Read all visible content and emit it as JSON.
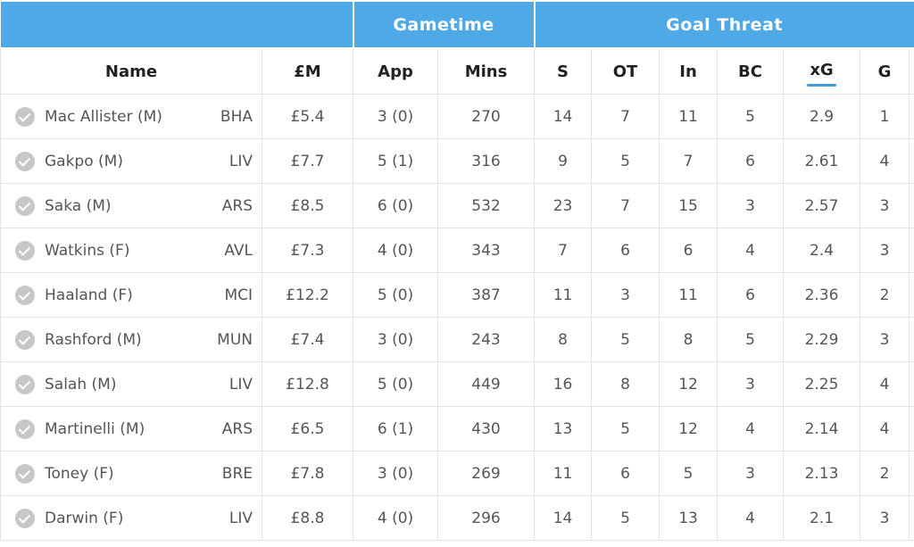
{
  "groups": {
    "gametime": "Gametime",
    "goal_threat": "Goal Threat"
  },
  "columns": {
    "name": "Name",
    "price": "£M",
    "app": "App",
    "mins": "Mins",
    "shots": "S",
    "on_target": "OT",
    "in_box": "In",
    "big_chances": "BC",
    "xg": "xG",
    "goals": "G"
  },
  "sorted_column": "xG",
  "colors": {
    "header_bg": "#4fa9e6",
    "sort_indicator": "#3a9de0",
    "check_icon": "#c7c7c7"
  },
  "rows": [
    {
      "name": "Mac Allister (M)",
      "team": "BHA",
      "price": "£5.4",
      "app": "3 (0)",
      "mins": "270",
      "s": "14",
      "ot": "7",
      "in": "11",
      "bc": "5",
      "xg": "2.9",
      "g": "1"
    },
    {
      "name": "Gakpo (M)",
      "team": "LIV",
      "price": "£7.7",
      "app": "5 (1)",
      "mins": "316",
      "s": "9",
      "ot": "5",
      "in": "7",
      "bc": "6",
      "xg": "2.61",
      "g": "4"
    },
    {
      "name": "Saka (M)",
      "team": "ARS",
      "price": "£8.5",
      "app": "6 (0)",
      "mins": "532",
      "s": "23",
      "ot": "7",
      "in": "15",
      "bc": "3",
      "xg": "2.57",
      "g": "3"
    },
    {
      "name": "Watkins (F)",
      "team": "AVL",
      "price": "£7.3",
      "app": "4 (0)",
      "mins": "343",
      "s": "7",
      "ot": "6",
      "in": "6",
      "bc": "4",
      "xg": "2.4",
      "g": "3"
    },
    {
      "name": "Haaland (F)",
      "team": "MCI",
      "price": "£12.2",
      "app": "5 (0)",
      "mins": "387",
      "s": "11",
      "ot": "3",
      "in": "11",
      "bc": "6",
      "xg": "2.36",
      "g": "2"
    },
    {
      "name": "Rashford (M)",
      "team": "MUN",
      "price": "£7.4",
      "app": "3 (0)",
      "mins": "243",
      "s": "8",
      "ot": "5",
      "in": "8",
      "bc": "5",
      "xg": "2.29",
      "g": "3"
    },
    {
      "name": "Salah (M)",
      "team": "LIV",
      "price": "£12.8",
      "app": "5 (0)",
      "mins": "449",
      "s": "16",
      "ot": "8",
      "in": "12",
      "bc": "3",
      "xg": "2.25",
      "g": "4"
    },
    {
      "name": "Martinelli (M)",
      "team": "ARS",
      "price": "£6.5",
      "app": "6 (1)",
      "mins": "430",
      "s": "13",
      "ot": "5",
      "in": "12",
      "bc": "4",
      "xg": "2.14",
      "g": "4"
    },
    {
      "name": "Toney (F)",
      "team": "BRE",
      "price": "£7.8",
      "app": "3 (0)",
      "mins": "269",
      "s": "11",
      "ot": "6",
      "in": "5",
      "bc": "3",
      "xg": "2.13",
      "g": "2"
    },
    {
      "name": "Darwin (F)",
      "team": "LIV",
      "price": "£8.8",
      "app": "4 (0)",
      "mins": "296",
      "s": "14",
      "ot": "5",
      "in": "13",
      "bc": "4",
      "xg": "2.1",
      "g": "3"
    }
  ]
}
